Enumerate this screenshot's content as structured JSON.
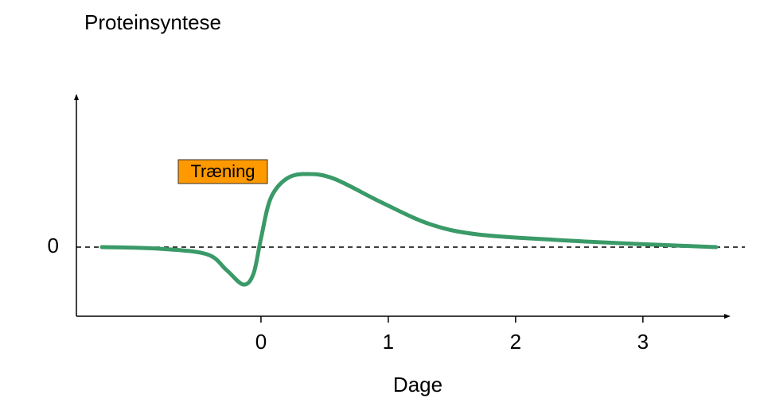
{
  "chart_data": {
    "type": "line",
    "title": "Proteinsyntese",
    "x_label": "Dage",
    "annotation": "Træning",
    "x": [
      -1.25,
      -0.8,
      -0.425,
      -0.27,
      -0.14,
      -0.06,
      0,
      0.075,
      0.2,
      0.36,
      0.575,
      0.95,
      1.325,
      1.7,
      2.325,
      2.95,
      3.575
    ],
    "series": [
      {
        "color": "#3a9a68",
        "values": [
          0,
          -0.02,
          -0.09,
          -0.29,
          -0.47,
          -0.34,
          0.11,
          0.61,
          0.86,
          0.92,
          0.86,
          0.56,
          0.29,
          0.16,
          0.09,
          0.04,
          0
        ]
      }
    ],
    "xlim": [
      -1.45,
      3.67
    ],
    "ylim": [
      -0.87,
      1.91
    ],
    "xticks": [
      0,
      1,
      2,
      3
    ],
    "yticks": [
      0
    ]
  }
}
